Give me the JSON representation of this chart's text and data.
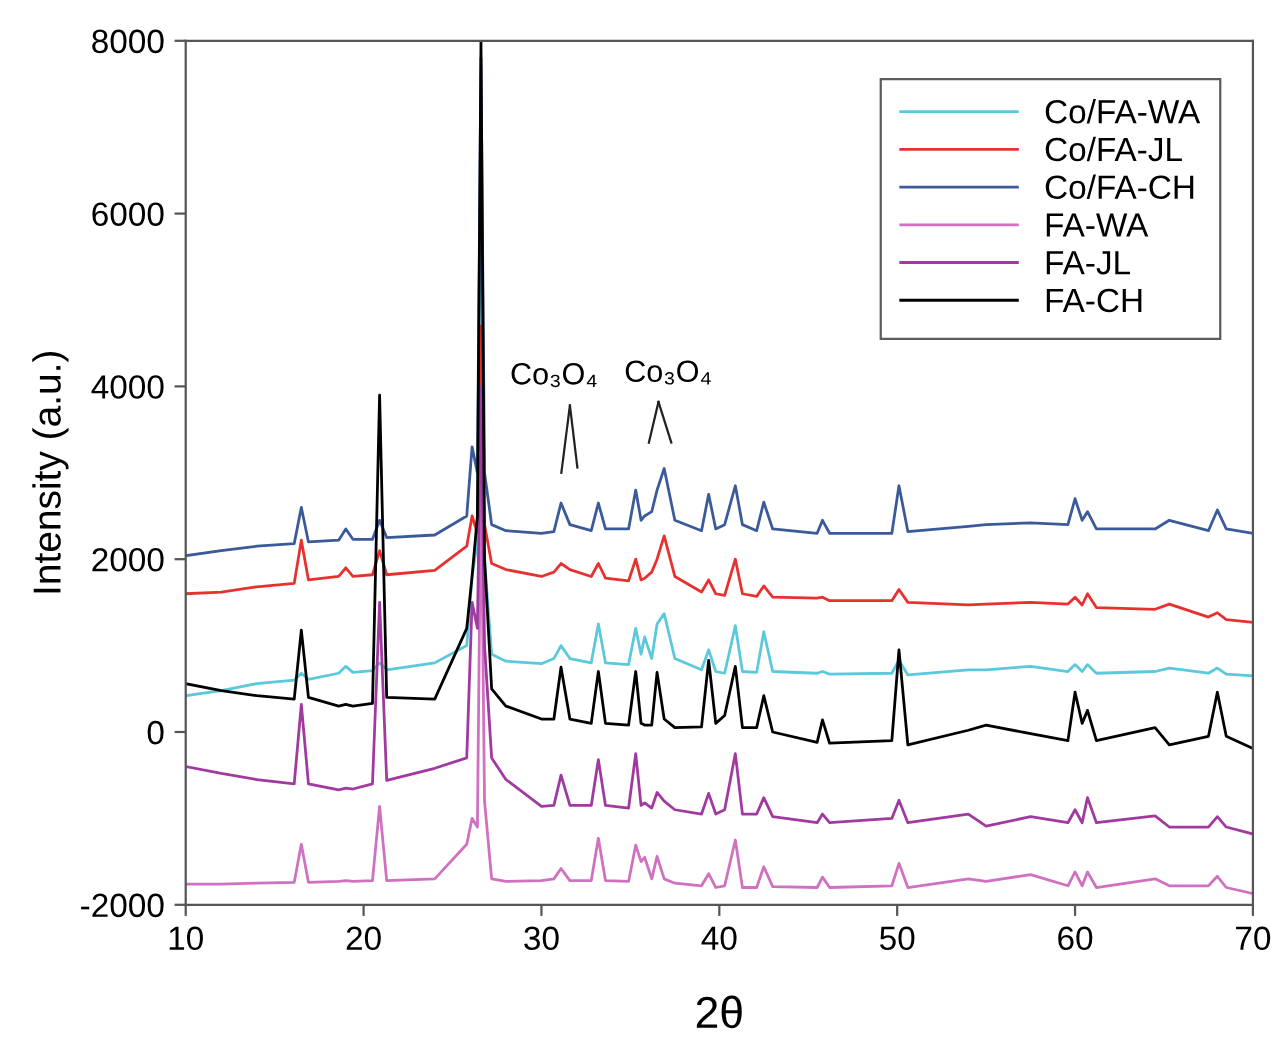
{
  "chart_data": {
    "type": "line",
    "xlabel": "2θ",
    "ylabel": "Intensity (a.u.)",
    "x": [
      10,
      12,
      14,
      16.1,
      16.5,
      16.9,
      18.6,
      19,
      19.4,
      20.5,
      20.9,
      21.3,
      24,
      25.8,
      26.1,
      26.4,
      26.6,
      26.8,
      27.2,
      28,
      30,
      30.7,
      31.1,
      31.6,
      32.8,
      33.2,
      33.6,
      34.9,
      35.3,
      35.6,
      35.8,
      36.2,
      36.5,
      36.9,
      37.5,
      39,
      39.4,
      39.8,
      40.3,
      40.9,
      41.3,
      42.1,
      42.5,
      43,
      45.5,
      45.8,
      46.2,
      49.7,
      50.1,
      50.6,
      54,
      55,
      57.5,
      59.6,
      60,
      60.4,
      60.7,
      61.2,
      64.5,
      65.3,
      67.5,
      68,
      68.5,
      70
    ],
    "series": [
      {
        "name": "Co/FA-WA",
        "color": "#5bc8dc",
        "values": [
          420,
          480,
          560,
          600,
          680,
          610,
          680,
          760,
          690,
          710,
          800,
          720,
          800,
          1000,
          1800,
          2200,
          6800,
          2000,
          900,
          820,
          790,
          850,
          1000,
          850,
          800,
          1250,
          800,
          780,
          1200,
          900,
          1100,
          850,
          1250,
          1370,
          850,
          720,
          950,
          700,
          680,
          1230,
          700,
          690,
          1160,
          700,
          680,
          700,
          670,
          680,
          830,
          660,
          720,
          720,
          760,
          700,
          780,
          700,
          780,
          680,
          700,
          740,
          680,
          740,
          670,
          650
        ]
      },
      {
        "name": "Co/FA-JL",
        "color": "#e8312e",
        "values": [
          1600,
          1620,
          1680,
          1720,
          2220,
          1760,
          1800,
          1900,
          1800,
          1820,
          2100,
          1820,
          1870,
          2150,
          2500,
          2300,
          4700,
          2400,
          1950,
          1880,
          1800,
          1850,
          1950,
          1880,
          1800,
          1950,
          1780,
          1750,
          2000,
          1760,
          1780,
          1850,
          2000,
          2270,
          1800,
          1620,
          1760,
          1600,
          1580,
          2000,
          1600,
          1570,
          1690,
          1560,
          1550,
          1560,
          1520,
          1520,
          1650,
          1500,
          1470,
          1480,
          1500,
          1480,
          1560,
          1470,
          1600,
          1440,
          1420,
          1480,
          1330,
          1380,
          1300,
          1270
        ]
      },
      {
        "name": "Co/FA-CH",
        "color": "#3a5a9a",
        "values": [
          2040,
          2100,
          2150,
          2180,
          2600,
          2200,
          2220,
          2350,
          2230,
          2230,
          2450,
          2250,
          2280,
          2500,
          3300,
          3000,
          7800,
          3000,
          2400,
          2330,
          2300,
          2320,
          2650,
          2400,
          2330,
          2650,
          2350,
          2350,
          2800,
          2450,
          2500,
          2550,
          2800,
          3050,
          2450,
          2330,
          2750,
          2350,
          2400,
          2850,
          2400,
          2330,
          2660,
          2350,
          2300,
          2450,
          2300,
          2300,
          2850,
          2320,
          2380,
          2400,
          2420,
          2400,
          2700,
          2450,
          2550,
          2350,
          2350,
          2450,
          2330,
          2570,
          2350,
          2300
        ]
      },
      {
        "name": "FA-WA",
        "color": "#d070c0",
        "values": [
          -1760,
          -1760,
          -1750,
          -1740,
          -1300,
          -1740,
          -1730,
          -1720,
          -1730,
          -1720,
          -860,
          -1720,
          -1700,
          -1300,
          -1000,
          -1100,
          3000,
          -800,
          -1700,
          -1730,
          -1720,
          -1700,
          -1580,
          -1720,
          -1720,
          -1230,
          -1720,
          -1730,
          -1310,
          -1500,
          -1450,
          -1700,
          -1440,
          -1700,
          -1750,
          -1780,
          -1640,
          -1800,
          -1780,
          -1250,
          -1800,
          -1800,
          -1560,
          -1790,
          -1800,
          -1680,
          -1800,
          -1780,
          -1520,
          -1800,
          -1700,
          -1730,
          -1650,
          -1780,
          -1620,
          -1780,
          -1620,
          -1800,
          -1700,
          -1780,
          -1780,
          -1670,
          -1800,
          -1870
        ]
      },
      {
        "name": "FA-JL",
        "color": "#a03aa0",
        "values": [
          -400,
          -480,
          -550,
          -600,
          320,
          -600,
          -670,
          -650,
          -660,
          -600,
          1500,
          -560,
          -420,
          -300,
          1500,
          1200,
          4000,
          1000,
          -300,
          -550,
          -860,
          -850,
          -500,
          -850,
          -850,
          -320,
          -850,
          -880,
          -250,
          -850,
          -820,
          -880,
          -700,
          -800,
          -900,
          -950,
          -710,
          -950,
          -900,
          -250,
          -950,
          -950,
          -760,
          -980,
          -1050,
          -950,
          -1050,
          -1000,
          -790,
          -1050,
          -950,
          -1090,
          -980,
          -1050,
          -900,
          -1050,
          -760,
          -1050,
          -970,
          -1100,
          -1100,
          -980,
          -1100,
          -1180
        ]
      },
      {
        "name": "FA-CH",
        "color": "#000000",
        "values": [
          560,
          480,
          420,
          380,
          1180,
          400,
          300,
          320,
          300,
          330,
          3900,
          400,
          380,
          1200,
          1800,
          2500,
          8000,
          2000,
          500,
          300,
          150,
          150,
          750,
          150,
          100,
          700,
          100,
          80,
          700,
          100,
          80,
          80,
          690,
          150,
          50,
          60,
          830,
          100,
          190,
          760,
          50,
          50,
          420,
          0,
          -120,
          140,
          -130,
          -100,
          950,
          -150,
          20,
          80,
          -20,
          -100,
          460,
          100,
          250,
          -100,
          50,
          -150,
          -50,
          460,
          -50,
          -190
        ]
      }
    ],
    "xlim": [
      10,
      70
    ],
    "ylim": [
      -2000,
      8000
    ],
    "xticks": [
      10,
      20,
      30,
      40,
      50,
      60,
      70
    ],
    "yticks": [
      -2000,
      0,
      2000,
      4000,
      6000,
      8000
    ],
    "legend": "top right",
    "grid": false,
    "marker": "none",
    "line_style": "solid",
    "annotations": [
      "Co₃O₄",
      "Co₃O₄"
    ]
  }
}
